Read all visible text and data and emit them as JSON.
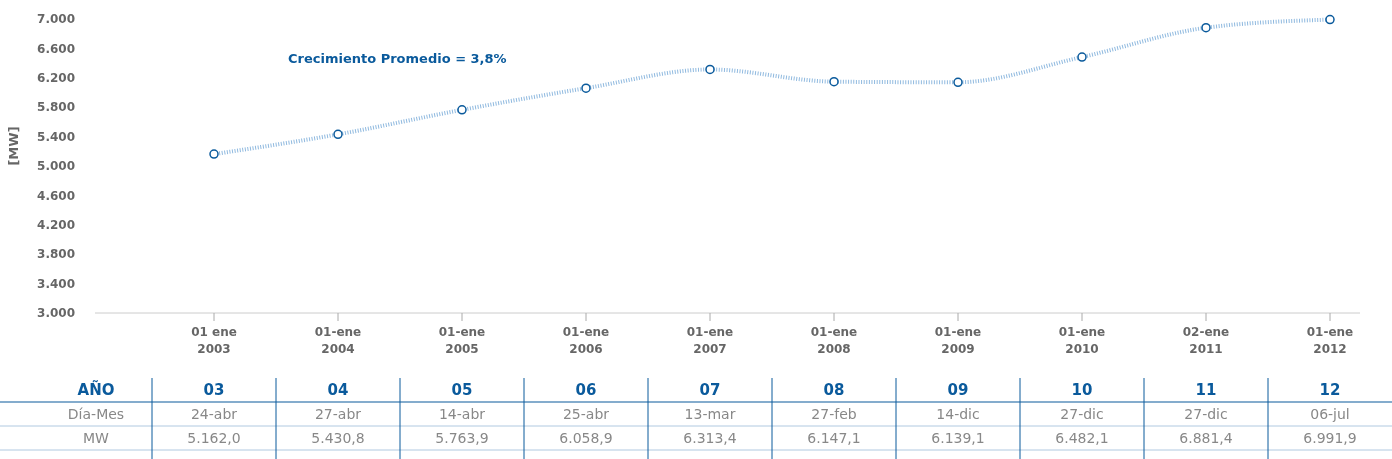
{
  "chart_data": {
    "type": "line",
    "ylabel": "[MW]",
    "categories": [
      "01 ene\n2003",
      "01-ene\n2004",
      "01-ene\n2005",
      "01-ene\n2006",
      "01-ene\n2007",
      "01-ene\n2008",
      "01-ene\n2009",
      "01-ene\n2010",
      "02-ene\n2011",
      "01-ene\n2012"
    ],
    "series": [
      {
        "color": "#8fb9df",
        "values": [
          5162.0,
          5430.8,
          5763.9,
          6058.9,
          6313.4,
          6147.1,
          6139.1,
          6482.1,
          6881.4,
          6991.9
        ],
        "value_labels": [
          "5.162,0",
          "5.430,8",
          "5.763,9",
          "6.058,9",
          "6.313,4",
          "6.147,1",
          "6.139,1",
          "6.482,1",
          "6.881,4",
          "6.991,9"
        ]
      }
    ],
    "ylim": [
      3000,
      7000
    ],
    "yticks": [
      {
        "value": 3000,
        "label": "3.000"
      },
      {
        "value": 3400,
        "label": "3.400"
      },
      {
        "value": 3800,
        "label": "3.800"
      },
      {
        "value": 4200,
        "label": "4.200"
      },
      {
        "value": 4600,
        "label": "4.600"
      },
      {
        "value": 5000,
        "label": "5.000"
      },
      {
        "value": 5400,
        "label": "5.400"
      },
      {
        "value": 5800,
        "label": "5.800"
      },
      {
        "value": 6200,
        "label": "6.200"
      },
      {
        "value": 6600,
        "label": "6.600"
      },
      {
        "value": 7000,
        "label": "7.000"
      }
    ],
    "marker": "circle",
    "line_style": "dotted",
    "grid": false,
    "annotations": [
      "Crecimiento Promedio = 3,8%",
      "AÑO",
      "03",
      "04",
      "05",
      "06",
      "07",
      "08",
      "09",
      "10",
      "11",
      "12",
      "Día-Mes",
      "24-abr",
      "27-abr",
      "14-abr",
      "25-abr",
      "13-mar",
      "27-feb",
      "14-dic",
      "27-dic",
      "27-dic",
      "06-jul",
      "MW"
    ]
  }
}
